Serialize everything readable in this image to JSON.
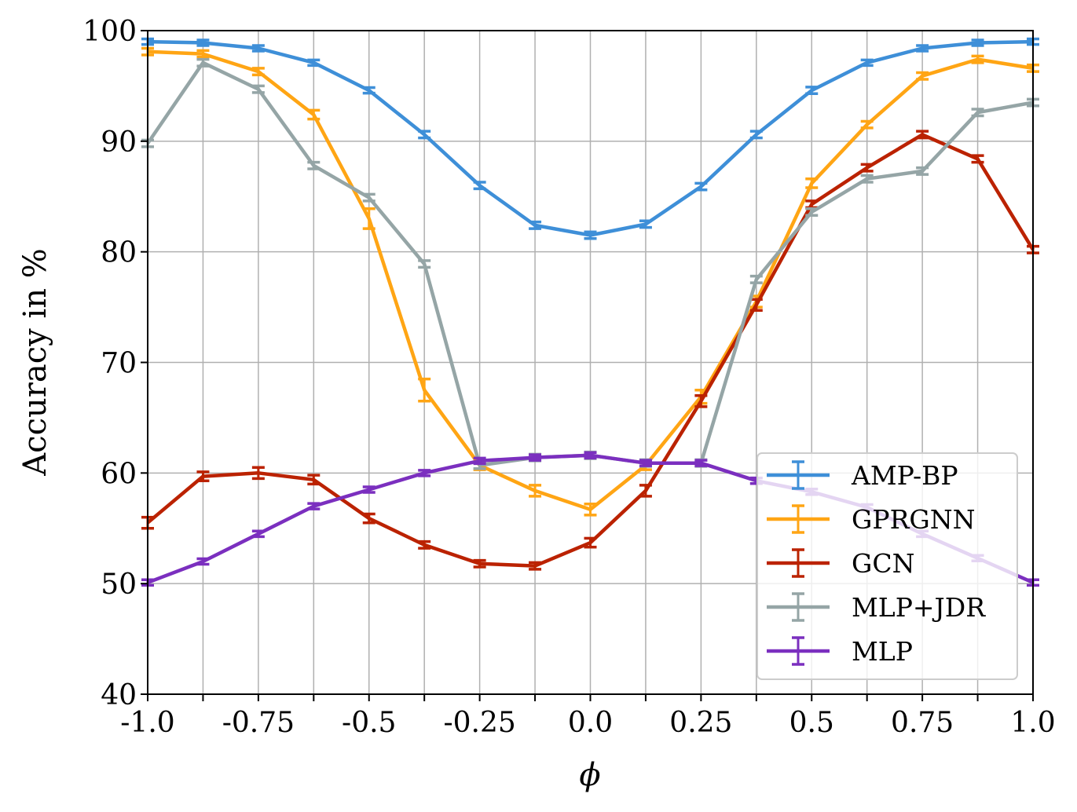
{
  "chart_data": {
    "type": "line",
    "xlabel": "ϕ",
    "ylabel": "Accuracy in %",
    "xlim": [
      -1.0,
      1.0
    ],
    "ylim": [
      40,
      100
    ],
    "xticks": [
      -1.0,
      -0.75,
      -0.5,
      -0.25,
      0.0,
      0.25,
      0.5,
      0.75,
      1.0
    ],
    "xtick_labels": [
      "-1.0",
      "-0.75",
      "-0.5",
      "-0.25",
      "0.0",
      "0.25",
      "0.5",
      "0.75",
      "1.0"
    ],
    "yticks": [
      40,
      50,
      60,
      70,
      80,
      90,
      100
    ],
    "ytick_labels": [
      "40",
      "50",
      "60",
      "70",
      "80",
      "90",
      "100"
    ],
    "grid": true,
    "legend_position": "lower-right",
    "x": [
      -1.0,
      -0.875,
      -0.75,
      -0.625,
      -0.5,
      -0.375,
      -0.25,
      -0.125,
      0.0,
      0.125,
      0.25,
      0.375,
      0.5,
      0.625,
      0.75,
      0.875,
      1.0
    ],
    "series": [
      {
        "name": "AMP-BP",
        "color": "#3e8fd8",
        "values": [
          99.0,
          98.9,
          98.4,
          97.1,
          94.6,
          90.6,
          86.0,
          82.4,
          81.5,
          82.5,
          85.9,
          90.6,
          94.6,
          97.1,
          98.4,
          98.9,
          99.0
        ],
        "errors": [
          0.25,
          0.25,
          0.25,
          0.25,
          0.25,
          0.3,
          0.3,
          0.3,
          0.3,
          0.3,
          0.3,
          0.3,
          0.3,
          0.25,
          0.25,
          0.25,
          0.25
        ]
      },
      {
        "name": "GPRGNN",
        "color": "#ffa514",
        "values": [
          98.1,
          97.9,
          96.3,
          92.4,
          83.0,
          67.5,
          60.7,
          58.4,
          56.7,
          60.7,
          66.9,
          75.5,
          86.2,
          91.5,
          95.9,
          97.4,
          96.6
        ],
        "errors": [
          0.3,
          0.3,
          0.3,
          0.4,
          0.9,
          1.0,
          0.4,
          0.5,
          0.5,
          0.4,
          0.6,
          0.5,
          0.4,
          0.3,
          0.3,
          0.3,
          0.3
        ]
      },
      {
        "name": "GCN",
        "color": "#bb2200",
        "values": [
          55.5,
          59.7,
          60.0,
          59.4,
          55.9,
          53.5,
          51.8,
          51.6,
          53.7,
          58.4,
          66.5,
          75.2,
          84.3,
          87.6,
          90.6,
          88.4,
          80.2
        ],
        "errors": [
          0.5,
          0.4,
          0.5,
          0.4,
          0.4,
          0.3,
          0.3,
          0.3,
          0.4,
          0.5,
          0.5,
          0.5,
          0.3,
          0.3,
          0.3,
          0.3,
          0.3
        ]
      },
      {
        "name": "MLP+JDR",
        "color": "#95a5a6",
        "values": [
          89.8,
          97.1,
          94.7,
          87.8,
          84.9,
          78.9,
          60.7,
          61.4,
          61.6,
          60.9,
          60.9,
          77.5,
          83.6,
          86.6,
          87.3,
          92.6,
          93.5
        ],
        "errors": [
          0.3,
          0.3,
          0.3,
          0.3,
          0.3,
          0.3,
          0.3,
          0.3,
          0.3,
          0.3,
          0.3,
          0.3,
          0.3,
          0.3,
          0.3,
          0.3,
          0.3
        ]
      },
      {
        "name": "MLP",
        "color": "#7b2fbf",
        "values": [
          50.1,
          52.0,
          54.5,
          57.0,
          58.5,
          60.0,
          61.1,
          61.4,
          61.6,
          60.9,
          60.9,
          59.3,
          58.3,
          56.9,
          54.5,
          52.3,
          50.1
        ],
        "errors": [
          0.25,
          0.25,
          0.25,
          0.25,
          0.25,
          0.25,
          0.25,
          0.25,
          0.25,
          0.25,
          0.25,
          0.25,
          0.25,
          0.25,
          0.25,
          0.25,
          0.25
        ]
      }
    ]
  }
}
